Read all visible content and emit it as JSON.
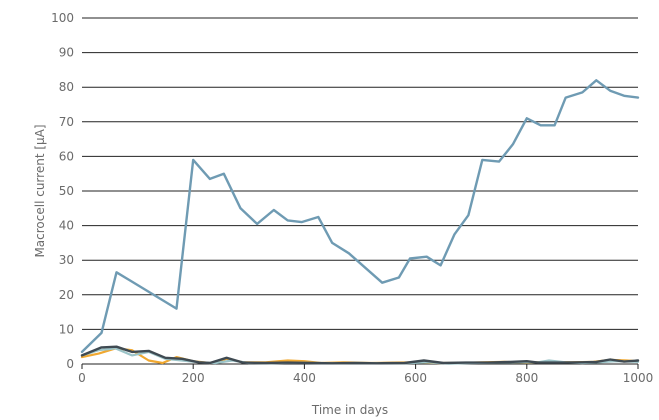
{
  "chart_data": {
    "type": "line",
    "xlabel": "Time in days",
    "ylabel": "Macrocell current [µA]",
    "xlim": [
      0,
      1000
    ],
    "ylim": [
      0,
      100
    ],
    "x_ticks": [
      "0",
      "200",
      "400",
      "600",
      "800",
      "1000"
    ],
    "y_ticks": [
      "0",
      "10",
      "20",
      "30",
      "40",
      "50",
      "60",
      "70",
      "80",
      "90",
      "100"
    ],
    "grid": "horizontal",
    "legend": "none",
    "series": [
      {
        "color": "#6f9bb3",
        "points": [
          [
            0,
            3.5
          ],
          [
            35,
            9
          ],
          [
            62,
            26.5
          ],
          [
            170,
            16
          ],
          [
            200,
            59
          ],
          [
            230,
            53.5
          ],
          [
            255,
            55
          ],
          [
            285,
            45
          ],
          [
            315,
            40.5
          ],
          [
            345,
            44.5
          ],
          [
            370,
            41.5
          ],
          [
            395,
            41
          ],
          [
            425,
            42.5
          ],
          [
            450,
            35
          ],
          [
            480,
            32
          ],
          [
            540,
            23.5
          ],
          [
            570,
            25
          ],
          [
            590,
            30.5
          ],
          [
            620,
            31
          ],
          [
            645,
            28.5
          ],
          [
            670,
            37.5
          ],
          [
            695,
            43
          ],
          [
            720,
            59
          ],
          [
            750,
            58.5
          ],
          [
            775,
            63.5
          ],
          [
            800,
            71
          ],
          [
            825,
            69
          ],
          [
            850,
            69
          ],
          [
            870,
            77
          ],
          [
            900,
            78.5
          ],
          [
            925,
            82
          ],
          [
            950,
            79
          ],
          [
            975,
            77.5
          ],
          [
            1000,
            77
          ]
        ]
      },
      {
        "color": "#f0a830",
        "points": [
          [
            0,
            2
          ],
          [
            30,
            3
          ],
          [
            60,
            4.5
          ],
          [
            90,
            4
          ],
          [
            120,
            1
          ],
          [
            145,
            0.3
          ],
          [
            170,
            2
          ],
          [
            200,
            0.8
          ],
          [
            230,
            0.3
          ],
          [
            260,
            1.5
          ],
          [
            290,
            0.5
          ],
          [
            330,
            0.5
          ],
          [
            370,
            1
          ],
          [
            400,
            0.8
          ],
          [
            430,
            0.3
          ],
          [
            470,
            0.5
          ],
          [
            520,
            0.3
          ],
          [
            560,
            0.4
          ],
          [
            600,
            0.5
          ],
          [
            640,
            0.3
          ],
          [
            680,
            0.3
          ],
          [
            720,
            0.5
          ],
          [
            760,
            0.6
          ],
          [
            800,
            0.4
          ],
          [
            840,
            0.6
          ],
          [
            880,
            0.5
          ],
          [
            920,
            0.6
          ],
          [
            950,
            1.2
          ],
          [
            980,
            1
          ],
          [
            1000,
            0.8
          ]
        ]
      },
      {
        "color": "#9cc4c8",
        "points": [
          [
            0,
            2.5
          ],
          [
            30,
            4
          ],
          [
            60,
            4.5
          ],
          [
            90,
            2.5
          ],
          [
            120,
            3.5
          ],
          [
            150,
            1.5
          ],
          [
            180,
            1
          ],
          [
            210,
            0.5
          ],
          [
            240,
            0.3
          ],
          [
            270,
            1
          ],
          [
            300,
            0.3
          ],
          [
            340,
            0.2
          ],
          [
            380,
            0.4
          ],
          [
            420,
            0.3
          ],
          [
            460,
            0.2
          ],
          [
            500,
            0.3
          ],
          [
            540,
            0.2
          ],
          [
            580,
            0.2
          ],
          [
            620,
            0.5
          ],
          [
            660,
            0.1
          ],
          [
            700,
            0.3
          ],
          [
            740,
            0.4
          ],
          [
            780,
            0.5
          ],
          [
            820,
            0.5
          ],
          [
            840,
            1
          ],
          [
            870,
            0.5
          ],
          [
            900,
            0.3
          ],
          [
            930,
            0.5
          ],
          [
            960,
            0.8
          ],
          [
            1000,
            0.6
          ]
        ]
      },
      {
        "color": "#3f4a52",
        "points": [
          [
            0,
            2.5
          ],
          [
            35,
            4.8
          ],
          [
            62,
            5
          ],
          [
            90,
            3.5
          ],
          [
            120,
            3.8
          ],
          [
            150,
            1.8
          ],
          [
            180,
            1.5
          ],
          [
            210,
            0.5
          ],
          [
            230,
            0.3
          ],
          [
            260,
            1.8
          ],
          [
            290,
            0.4
          ],
          [
            330,
            0.3
          ],
          [
            370,
            0.4
          ],
          [
            410,
            0.3
          ],
          [
            450,
            0.2
          ],
          [
            490,
            0.3
          ],
          [
            530,
            0.2
          ],
          [
            580,
            0.3
          ],
          [
            615,
            1
          ],
          [
            650,
            0.3
          ],
          [
            690,
            0.4
          ],
          [
            730,
            0.4
          ],
          [
            770,
            0.6
          ],
          [
            800,
            0.8
          ],
          [
            820,
            0.4
          ],
          [
            860,
            0.4
          ],
          [
            900,
            0.5
          ],
          [
            925,
            0.6
          ],
          [
            950,
            1.3
          ],
          [
            975,
            0.7
          ],
          [
            1000,
            1
          ]
        ]
      }
    ]
  }
}
